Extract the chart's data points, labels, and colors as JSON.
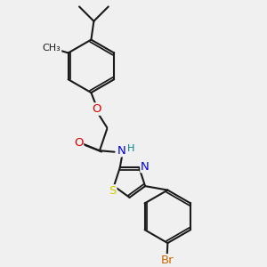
{
  "background_color": "#f0f0f0",
  "bond_color": "#1a1a1a",
  "bond_width": 1.5,
  "atom_colors": {
    "O": "#dd0000",
    "N": "#0000dd",
    "S": "#cccc00",
    "Br": "#cc6600",
    "NH": "#008080",
    "C": "#1a1a1a"
  },
  "font_size": 9.5
}
